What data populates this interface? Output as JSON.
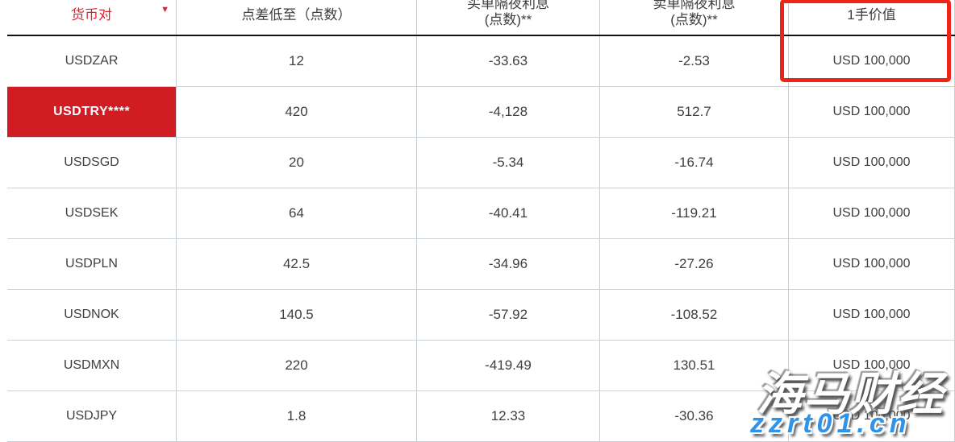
{
  "colors": {
    "accent_red": "#d2232e",
    "highlight_box_red": "#ee2418",
    "watermark_blue": "#2e94e9"
  },
  "header": {
    "sort_icon": "▼"
  },
  "table": {
    "columns": [
      {
        "key": "pair",
        "label": "货币对",
        "sub": ""
      },
      {
        "key": "spread",
        "label": "点差低至（点数）",
        "sub": ""
      },
      {
        "key": "buy_swap",
        "label": "买单隔夜利息",
        "sub": "(点数)**"
      },
      {
        "key": "sell_swap",
        "label": "卖单隔夜利息",
        "sub": "(点数)**"
      },
      {
        "key": "lot_value",
        "label": "1手价值",
        "sub": ""
      }
    ],
    "rows": [
      {
        "pair": "USDZAR",
        "spread": "12",
        "buy_swap": "-33.63",
        "sell_swap": "-2.53",
        "lot_value": "USD 100,000",
        "highlight": false
      },
      {
        "pair": "USDTRY****",
        "spread": "420",
        "buy_swap": "-4,128",
        "sell_swap": "512.7",
        "lot_value": "USD 100,000",
        "highlight": true
      },
      {
        "pair": "USDSGD",
        "spread": "20",
        "buy_swap": "-5.34",
        "sell_swap": "-16.74",
        "lot_value": "USD 100,000",
        "highlight": false
      },
      {
        "pair": "USDSEK",
        "spread": "64",
        "buy_swap": "-40.41",
        "sell_swap": "-119.21",
        "lot_value": "USD 100,000",
        "highlight": false
      },
      {
        "pair": "USDPLN",
        "spread": "42.5",
        "buy_swap": "-34.96",
        "sell_swap": "-27.26",
        "lot_value": "USD 100,000",
        "highlight": false
      },
      {
        "pair": "USDNOK",
        "spread": "140.5",
        "buy_swap": "-57.92",
        "sell_swap": "-108.52",
        "lot_value": "USD 100,000",
        "highlight": false
      },
      {
        "pair": "USDMXN",
        "spread": "220",
        "buy_swap": "-419.49",
        "sell_swap": "130.51",
        "lot_value": "USD 100,000",
        "highlight": false
      },
      {
        "pair": "USDJPY",
        "spread": "1.8",
        "buy_swap": "12.33",
        "sell_swap": "-30.36",
        "lot_value": "USD 100,000",
        "highlight": false
      }
    ]
  },
  "watermark": {
    "brand": "海马财经",
    "url": "zzrt01.cn"
  }
}
